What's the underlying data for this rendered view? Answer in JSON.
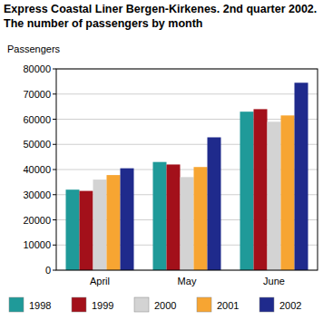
{
  "chart_data": {
    "type": "bar",
    "title": "Express Coastal Liner Bergen-Kirkenes. 2nd quarter 2002. The number of passengers by month",
    "y_label": "Passengers",
    "categories": [
      "April",
      "May",
      "June"
    ],
    "series": [
      {
        "name": "1998",
        "color": "#1f9a99",
        "values": [
          32000,
          43000,
          63000
        ]
      },
      {
        "name": "1999",
        "color": "#a3101a",
        "values": [
          31500,
          42000,
          64000
        ]
      },
      {
        "name": "2000",
        "color": "#d3d3d3",
        "values": [
          36000,
          37000,
          59000
        ]
      },
      {
        "name": "2001",
        "color": "#f7a532",
        "values": [
          37800,
          41000,
          61500
        ]
      },
      {
        "name": "2002",
        "color": "#1f2a8c",
        "values": [
          40500,
          52800,
          74500
        ]
      }
    ],
    "ylim": [
      0,
      80000
    ],
    "yticks": [
      0,
      10000,
      20000,
      30000,
      40000,
      50000,
      60000,
      70000,
      80000
    ],
    "grid": true,
    "legend": "bottom"
  }
}
